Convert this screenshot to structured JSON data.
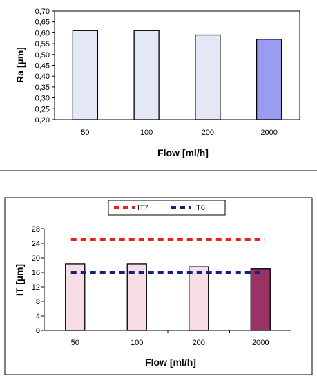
{
  "chart_data": [
    {
      "type": "bar",
      "categories": [
        "50",
        "100",
        "200",
        "2000"
      ],
      "values": [
        0.61,
        0.61,
        0.59,
        0.57
      ],
      "ylabel": "Ra [µm]",
      "xlabel": "Flow [ml/h]",
      "ylim": [
        0.2,
        0.7
      ],
      "yticks": [
        "0,20",
        "0,25",
        "0,30",
        "0,35",
        "0,40",
        "0,45",
        "0,50",
        "0,55",
        "0,60",
        "0,65",
        "0,70"
      ],
      "bar_colors": [
        "#e4e8f6",
        "#e4e8f6",
        "#e4e8f6",
        "#9a9cf2"
      ],
      "grid": false
    },
    {
      "type": "bar",
      "categories": [
        "50",
        "100",
        "200",
        "2000"
      ],
      "values": [
        18.3,
        18.3,
        17.5,
        17.0
      ],
      "ylabel": "IT [µm]",
      "xlabel": "Flow [ml/h]",
      "ylim": [
        0,
        28
      ],
      "yticks": [
        "0",
        "4",
        "8",
        "12",
        "16",
        "20",
        "24",
        "28"
      ],
      "bar_colors": [
        "#f6dde6",
        "#f6dde6",
        "#f6dde6",
        "#993366"
      ],
      "grid": false,
      "legend_position": "top",
      "reference_lines": [
        {
          "name": "IT7",
          "value": 25,
          "color": "#e8231e"
        },
        {
          "name": "IT6",
          "value": 16,
          "color": "#16207a"
        }
      ]
    }
  ]
}
